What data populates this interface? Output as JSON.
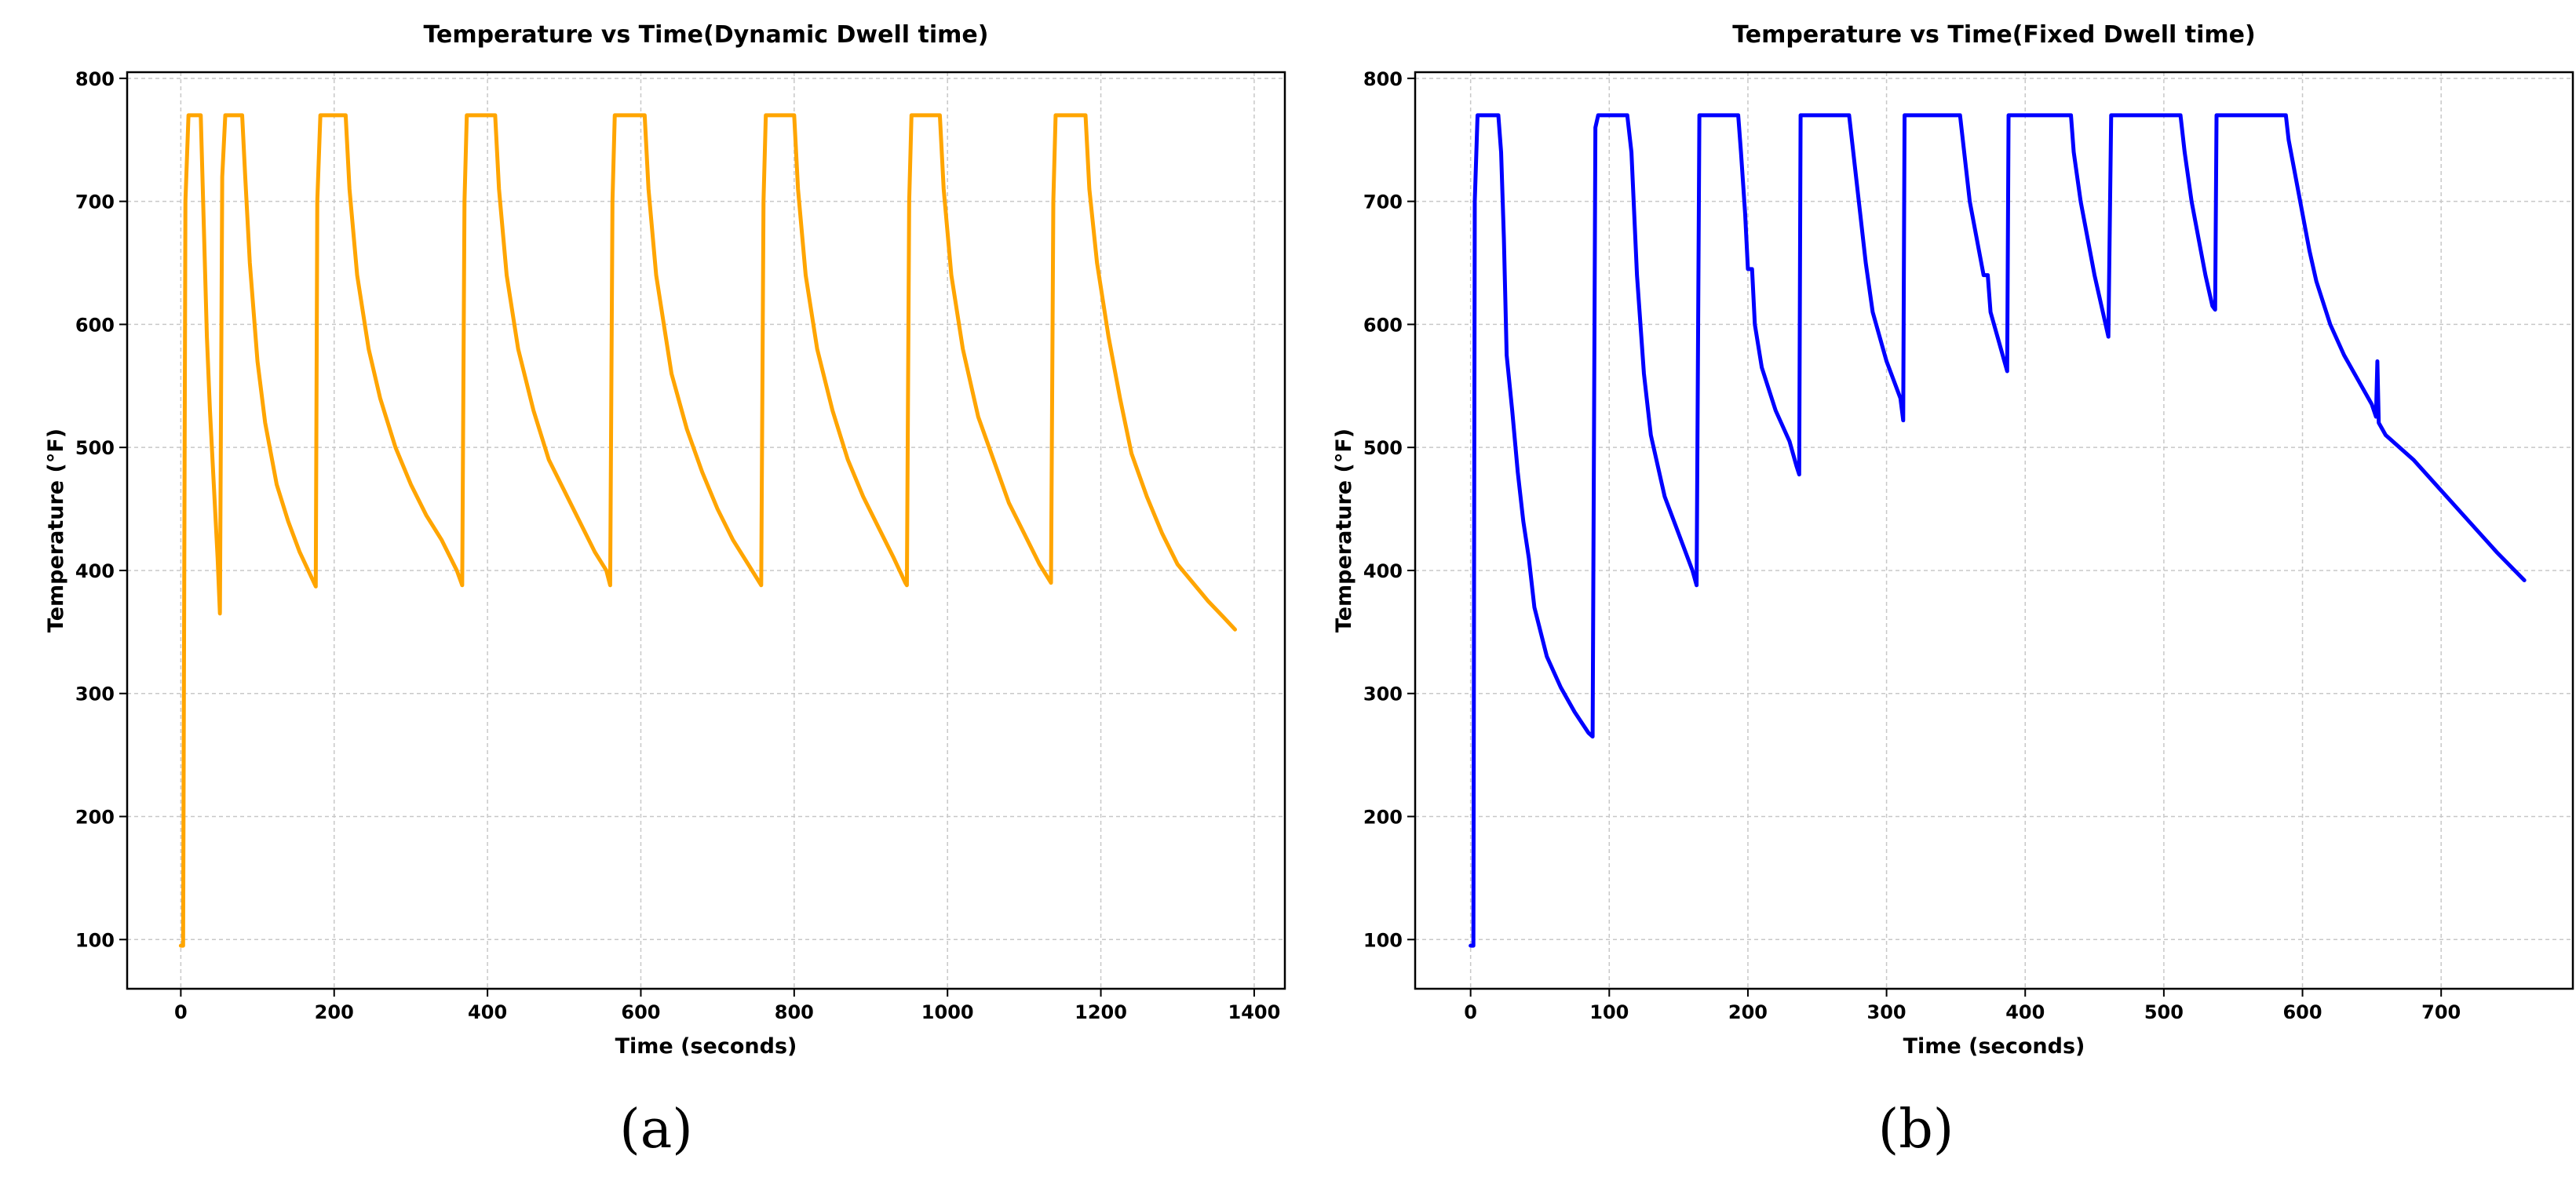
{
  "chart_data": [
    {
      "type": "line",
      "title": "Temperature vs Time(Dynamic Dwell time)",
      "xlabel": "Time (seconds)",
      "ylabel": "Temperature (°F)",
      "xlim": [
        -70,
        1440
      ],
      "ylim": [
        60,
        805
      ],
      "xticks": [
        0,
        200,
        400,
        600,
        800,
        1000,
        1200,
        1400
      ],
      "yticks": [
        100,
        200,
        300,
        400,
        500,
        600,
        700,
        800
      ],
      "grid": true,
      "caption": "(a)",
      "color": "#FFA500",
      "series": [
        {
          "x_start": 0,
          "x_end": 1375,
          "plateau": 770,
          "points": [
            [
              0,
              95
            ],
            [
              3,
              95
            ],
            [
              6,
              700
            ],
            [
              10,
              770
            ],
            [
              22,
              770
            ],
            [
              26,
              770
            ],
            [
              30,
              680
            ],
            [
              34,
              590
            ],
            [
              38,
              530
            ],
            [
              43,
              470
            ],
            [
              48,
              410
            ],
            [
              51,
              365
            ],
            [
              54,
              720
            ],
            [
              58,
              770
            ],
            [
              80,
              770
            ],
            [
              84,
              720
            ],
            [
              90,
              650
            ],
            [
              100,
              570
            ],
            [
              110,
              520
            ],
            [
              125,
              470
            ],
            [
              140,
              440
            ],
            [
              155,
              415
            ],
            [
              170,
              395
            ],
            [
              176,
              387
            ],
            [
              178,
              700
            ],
            [
              182,
              770
            ],
            [
              215,
              770
            ],
            [
              220,
              710
            ],
            [
              230,
              640
            ],
            [
              245,
              580
            ],
            [
              260,
              540
            ],
            [
              280,
              500
            ],
            [
              300,
              470
            ],
            [
              320,
              445
            ],
            [
              340,
              425
            ],
            [
              360,
              400
            ],
            [
              367,
              388
            ],
            [
              370,
              700
            ],
            [
              373,
              770
            ],
            [
              410,
              770
            ],
            [
              415,
              710
            ],
            [
              425,
              640
            ],
            [
              440,
              580
            ],
            [
              460,
              530
            ],
            [
              480,
              490
            ],
            [
              500,
              465
            ],
            [
              520,
              440
            ],
            [
              540,
              415
            ],
            [
              555,
              400
            ],
            [
              560,
              388
            ],
            [
              563,
              700
            ],
            [
              566,
              770
            ],
            [
              605,
              770
            ],
            [
              610,
              710
            ],
            [
              620,
              640
            ],
            [
              640,
              560
            ],
            [
              660,
              515
            ],
            [
              680,
              480
            ],
            [
              700,
              450
            ],
            [
              720,
              425
            ],
            [
              740,
              405
            ],
            [
              755,
              390
            ],
            [
              757,
              388
            ],
            [
              760,
              700
            ],
            [
              763,
              770
            ],
            [
              800,
              770
            ],
            [
              805,
              710
            ],
            [
              815,
              640
            ],
            [
              830,
              580
            ],
            [
              850,
              530
            ],
            [
              870,
              490
            ],
            [
              890,
              460
            ],
            [
              910,
              435
            ],
            [
              930,
              410
            ],
            [
              945,
              390
            ],
            [
              947,
              388
            ],
            [
              950,
              700
            ],
            [
              953,
              770
            ],
            [
              990,
              770
            ],
            [
              995,
              710
            ],
            [
              1005,
              640
            ],
            [
              1020,
              580
            ],
            [
              1040,
              525
            ],
            [
              1060,
              490
            ],
            [
              1080,
              455
            ],
            [
              1100,
              430
            ],
            [
              1120,
              405
            ],
            [
              1130,
              395
            ],
            [
              1135,
              390
            ],
            [
              1138,
              700
            ],
            [
              1141,
              770
            ],
            [
              1180,
              770
            ],
            [
              1185,
              710
            ],
            [
              1195,
              650
            ],
            [
              1210,
              590
            ],
            [
              1225,
              540
            ],
            [
              1240,
              495
            ],
            [
              1260,
              460
            ],
            [
              1280,
              430
            ],
            [
              1300,
              405
            ],
            [
              1320,
              390
            ],
            [
              1340,
              375
            ],
            [
              1360,
              362
            ],
            [
              1375,
              352
            ]
          ]
        }
      ]
    },
    {
      "type": "line",
      "title": "Temperature vs Time(Fixed Dwell time)",
      "xlabel": "Time (seconds)",
      "ylabel": "Temperature (°F)",
      "xlim": [
        -40,
        795
      ],
      "ylim": [
        60,
        805
      ],
      "xticks": [
        0,
        100,
        200,
        300,
        400,
        500,
        600,
        700
      ],
      "yticks": [
        100,
        200,
        300,
        400,
        500,
        600,
        700,
        800
      ],
      "grid": true,
      "caption": "(b)",
      "color": "#0000FF",
      "series": [
        {
          "x_start": 0,
          "x_end": 760,
          "plateau": 770,
          "points": [
            [
              0,
              95
            ],
            [
              2,
              95
            ],
            [
              3,
              700
            ],
            [
              5,
              770
            ],
            [
              20,
              770
            ],
            [
              22,
              740
            ],
            [
              24,
              670
            ],
            [
              26,
              575
            ],
            [
              30,
              530
            ],
            [
              34,
              480
            ],
            [
              38,
              440
            ],
            [
              42,
              410
            ],
            [
              46,
              370
            ],
            [
              55,
              330
            ],
            [
              65,
              305
            ],
            [
              75,
              285
            ],
            [
              85,
              268
            ],
            [
              88,
              265
            ],
            [
              90,
              760
            ],
            [
              92,
              770
            ],
            [
              113,
              770
            ],
            [
              116,
              740
            ],
            [
              120,
              640
            ],
            [
              125,
              560
            ],
            [
              130,
              510
            ],
            [
              140,
              460
            ],
            [
              150,
              430
            ],
            [
              160,
              400
            ],
            [
              163,
              388
            ],
            [
              165,
              770
            ],
            [
              193,
              770
            ],
            [
              195,
              740
            ],
            [
              198,
              690
            ],
            [
              200,
              645
            ],
            [
              203,
              645
            ],
            [
              205,
              600
            ],
            [
              210,
              565
            ],
            [
              220,
              530
            ],
            [
              230,
              505
            ],
            [
              235,
              485
            ],
            [
              237,
              478
            ],
            [
              238,
              770
            ],
            [
              273,
              770
            ],
            [
              275,
              750
            ],
            [
              280,
              700
            ],
            [
              285,
              650
            ],
            [
              290,
              610
            ],
            [
              300,
              570
            ],
            [
              310,
              540
            ],
            [
              312,
              522
            ],
            [
              313,
              770
            ],
            [
              353,
              770
            ],
            [
              355,
              750
            ],
            [
              360,
              700
            ],
            [
              365,
              670
            ],
            [
              370,
              640
            ],
            [
              373,
              640
            ],
            [
              375,
              610
            ],
            [
              380,
              590
            ],
            [
              385,
              570
            ],
            [
              387,
              562
            ],
            [
              388,
              770
            ],
            [
              433,
              770
            ],
            [
              435,
              740
            ],
            [
              440,
              700
            ],
            [
              445,
              670
            ],
            [
              450,
              640
            ],
            [
              455,
              615
            ],
            [
              460,
              590
            ],
            [
              462,
              770
            ],
            [
              512,
              770
            ],
            [
              515,
              740
            ],
            [
              520,
              700
            ],
            [
              525,
              670
            ],
            [
              530,
              640
            ],
            [
              535,
              615
            ],
            [
              537,
              612
            ],
            [
              538,
              770
            ],
            [
              588,
              770
            ],
            [
              590,
              750
            ],
            [
              595,
              720
            ],
            [
              600,
              690
            ],
            [
              605,
              660
            ],
            [
              610,
              635
            ],
            [
              620,
              600
            ],
            [
              630,
              575
            ],
            [
              640,
              555
            ],
            [
              650,
              535
            ],
            [
              653,
              525
            ],
            [
              654,
              570
            ],
            [
              655,
              520
            ],
            [
              660,
              510
            ],
            [
              680,
              490
            ],
            [
              700,
              465
            ],
            [
              720,
              440
            ],
            [
              740,
              415
            ],
            [
              760,
              392
            ]
          ]
        }
      ]
    }
  ]
}
